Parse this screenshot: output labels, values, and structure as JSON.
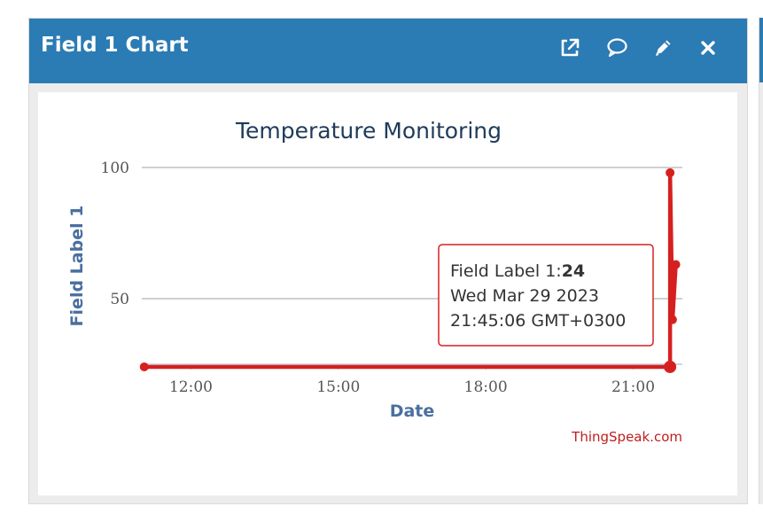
{
  "panel": {
    "title": "Field 1 Chart",
    "icons": [
      "external-link-icon",
      "comment-icon",
      "pencil-icon",
      "close-icon"
    ]
  },
  "chart_data": {
    "type": "line",
    "title": "Temperature Monitoring",
    "xlabel": "Date",
    "ylabel": "Field Label 1",
    "x_ticks": [
      "12:00",
      "15:00",
      "18:00",
      "21:00"
    ],
    "y_ticks": [
      50,
      100
    ],
    "xlim": [
      "11:00",
      "22:00"
    ],
    "ylim": [
      25,
      100
    ],
    "grid": true,
    "series": [
      {
        "name": "Field Label 1",
        "color": "#d62020",
        "points": [
          {
            "x": "11:03",
            "y": 24
          },
          {
            "x": "21:45",
            "y": 24
          },
          {
            "x": "21:45",
            "y": 98
          },
          {
            "x": "21:48",
            "y": 42
          },
          {
            "x": "21:52",
            "y": 63
          }
        ]
      }
    ],
    "tooltip": {
      "label": "Field Label 1:",
      "value": "24",
      "date": "Wed Mar 29 2023",
      "time": "21:45:06 GMT+0300",
      "point_index": 1
    },
    "credit": "ThingSpeak.com"
  }
}
